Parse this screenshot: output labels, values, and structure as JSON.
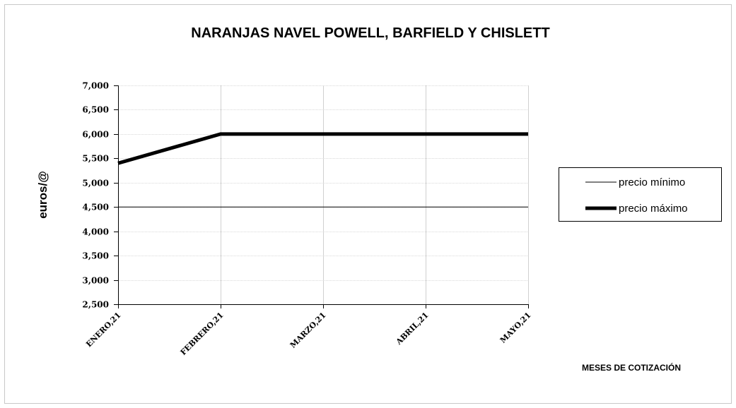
{
  "chart_data": {
    "type": "line",
    "title": "NARANJAS  NAVEL POWELL, BARFIELD Y CHISLETT",
    "ylabel": "euros/@",
    "xlabel": "MESES DE COTIZACIÓN",
    "categories": [
      "ENERO,21",
      "FEBRERO,21",
      "MARZO,21",
      "ABRIL,21",
      "MAYO,21"
    ],
    "ylim": [
      2.5,
      7.0
    ],
    "yticks": [
      2.5,
      3.0,
      3.5,
      4.0,
      4.5,
      5.0,
      5.5,
      6.0,
      6.5,
      7.0
    ],
    "ytick_labels": [
      "2,500",
      "3,000",
      "3,500",
      "4,000",
      "4,500",
      "5,000",
      "5,500",
      "6,000",
      "6,500",
      "7,000"
    ],
    "grid": true,
    "legend_position": "right",
    "series": [
      {
        "name": "precio mínimo",
        "values": [
          4.5,
          4.5,
          4.5,
          4.5,
          4.5
        ],
        "color": "#000000",
        "style": "thin"
      },
      {
        "name": "precio máximo",
        "values": [
          5.4,
          6.0,
          6.0,
          6.0,
          6.0
        ],
        "color": "#000000",
        "style": "thick"
      }
    ]
  }
}
